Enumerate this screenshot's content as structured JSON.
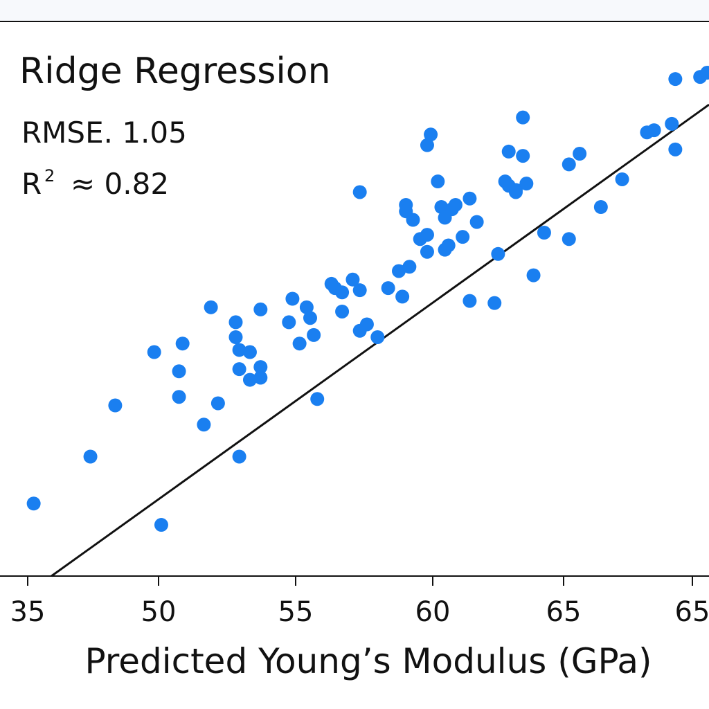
{
  "chart_data": {
    "type": "scatter",
    "title": "Ridge Regression",
    "annotations": {
      "rmse_label": "RMSE. 1.05",
      "r2_symbol": "R",
      "r2_superscript": "2",
      "r2_value": "≈ 0.82"
    },
    "xlabel": "Predicted Young’s Modulus (GPa)",
    "ylabel": "",
    "x_tick_labels": [
      "35",
      "50",
      "55",
      "60",
      "65",
      "65"
    ],
    "xlim": [
      45.25,
      65.25
    ],
    "ylim": [
      42.5,
      68.5
    ],
    "grid": false,
    "legend": "none",
    "point_color": "#1a7ff0",
    "line_color": "#111111",
    "fit_line": {
      "x": [
        46.7,
        65.25
      ],
      "y": [
        42.5,
        64.6
      ]
    },
    "points": [
      {
        "x": 46.2,
        "y": 45.9
      },
      {
        "x": 47.8,
        "y": 48.1
      },
      {
        "x": 48.5,
        "y": 50.5
      },
      {
        "x": 49.8,
        "y": 44.9
      },
      {
        "x": 49.6,
        "y": 53.0
      },
      {
        "x": 50.4,
        "y": 53.4
      },
      {
        "x": 50.3,
        "y": 52.1
      },
      {
        "x": 50.3,
        "y": 50.9
      },
      {
        "x": 51.0,
        "y": 49.6
      },
      {
        "x": 51.4,
        "y": 50.6
      },
      {
        "x": 51.2,
        "y": 55.1
      },
      {
        "x": 51.9,
        "y": 54.4
      },
      {
        "x": 51.9,
        "y": 53.7
      },
      {
        "x": 52.0,
        "y": 53.1
      },
      {
        "x": 52.3,
        "y": 53.0
      },
      {
        "x": 52.0,
        "y": 52.2
      },
      {
        "x": 52.3,
        "y": 51.7
      },
      {
        "x": 52.6,
        "y": 52.3
      },
      {
        "x": 52.6,
        "y": 51.8
      },
      {
        "x": 52.0,
        "y": 48.1
      },
      {
        "x": 52.6,
        "y": 55.0
      },
      {
        "x": 53.4,
        "y": 54.4
      },
      {
        "x": 53.5,
        "y": 55.5
      },
      {
        "x": 53.7,
        "y": 53.4
      },
      {
        "x": 53.9,
        "y": 55.1
      },
      {
        "x": 54.0,
        "y": 54.6
      },
      {
        "x": 54.2,
        "y": 50.8
      },
      {
        "x": 54.1,
        "y": 53.8
      },
      {
        "x": 54.6,
        "y": 56.2
      },
      {
        "x": 54.9,
        "y": 54.9
      },
      {
        "x": 54.7,
        "y": 56.0
      },
      {
        "x": 54.9,
        "y": 55.8
      },
      {
        "x": 55.2,
        "y": 56.4
      },
      {
        "x": 55.4,
        "y": 55.9
      },
      {
        "x": 55.6,
        "y": 54.3
      },
      {
        "x": 55.4,
        "y": 54.0
      },
      {
        "x": 55.4,
        "y": 60.5
      },
      {
        "x": 55.9,
        "y": 53.7
      },
      {
        "x": 56.2,
        "y": 56.0
      },
      {
        "x": 56.5,
        "y": 56.8
      },
      {
        "x": 56.6,
        "y": 55.6
      },
      {
        "x": 56.7,
        "y": 59.9
      },
      {
        "x": 56.7,
        "y": 59.6
      },
      {
        "x": 56.8,
        "y": 57.0
      },
      {
        "x": 56.9,
        "y": 59.2
      },
      {
        "x": 57.1,
        "y": 58.3
      },
      {
        "x": 57.3,
        "y": 57.7
      },
      {
        "x": 57.3,
        "y": 58.5
      },
      {
        "x": 57.3,
        "y": 62.7
      },
      {
        "x": 57.4,
        "y": 63.2
      },
      {
        "x": 57.6,
        "y": 61.0
      },
      {
        "x": 57.7,
        "y": 59.8
      },
      {
        "x": 57.8,
        "y": 57.8
      },
      {
        "x": 57.8,
        "y": 59.3
      },
      {
        "x": 57.9,
        "y": 58.0
      },
      {
        "x": 58.0,
        "y": 59.7
      },
      {
        "x": 58.1,
        "y": 59.9
      },
      {
        "x": 58.3,
        "y": 58.4
      },
      {
        "x": 58.5,
        "y": 60.2
      },
      {
        "x": 58.7,
        "y": 59.1
      },
      {
        "x": 58.5,
        "y": 55.4
      },
      {
        "x": 59.3,
        "y": 57.6
      },
      {
        "x": 59.2,
        "y": 55.3
      },
      {
        "x": 59.6,
        "y": 62.4
      },
      {
        "x": 59.5,
        "y": 61.0
      },
      {
        "x": 59.6,
        "y": 60.8
      },
      {
        "x": 59.8,
        "y": 60.6
      },
      {
        "x": 59.8,
        "y": 60.5
      },
      {
        "x": 60.1,
        "y": 60.9
      },
      {
        "x": 60.0,
        "y": 62.2
      },
      {
        "x": 60.0,
        "y": 64.0
      },
      {
        "x": 60.3,
        "y": 56.6
      },
      {
        "x": 60.6,
        "y": 58.6
      },
      {
        "x": 61.3,
        "y": 58.3
      },
      {
        "x": 61.6,
        "y": 62.3
      },
      {
        "x": 61.3,
        "y": 61.8
      },
      {
        "x": 62.2,
        "y": 59.8
      },
      {
        "x": 62.8,
        "y": 61.1
      },
      {
        "x": 63.5,
        "y": 63.3
      },
      {
        "x": 63.7,
        "y": 63.4
      },
      {
        "x": 64.2,
        "y": 63.7
      },
      {
        "x": 64.3,
        "y": 62.5
      },
      {
        "x": 64.3,
        "y": 65.8
      },
      {
        "x": 65.0,
        "y": 65.9
      },
      {
        "x": 65.2,
        "y": 66.1
      }
    ]
  }
}
